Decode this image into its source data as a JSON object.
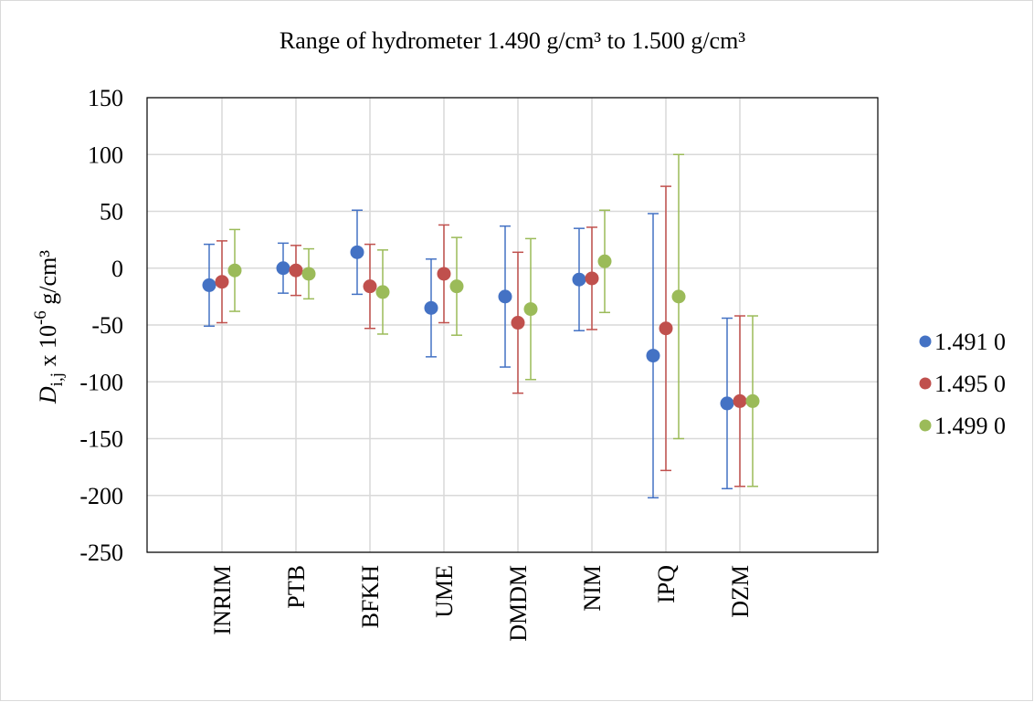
{
  "chart_data": {
    "type": "scatter",
    "title": "Range of hydrometer 1.490 g/cm³ to 1.500 g/cm³",
    "ylabel": {
      "italic": "D",
      "sub": "i,j",
      "rest": " x 10",
      "sup": "-6",
      "unit": " g/cm³"
    },
    "xlabel": "",
    "ylim": [
      -250,
      150
    ],
    "yticks": [
      150,
      100,
      50,
      0,
      -50,
      -100,
      -150,
      -200,
      -250
    ],
    "grid": true,
    "legend_position": "right",
    "categories": [
      "INRIM",
      "PTB",
      "BFKH",
      "UME",
      "DMDM",
      "NIM",
      "IPQ",
      "DZM"
    ],
    "series": [
      {
        "name": "1.491 0",
        "color": "#4472c4",
        "values": [
          -15,
          0,
          14,
          -35,
          -25,
          -10,
          -77,
          -119
        ],
        "errors": [
          36,
          22,
          37,
          43,
          62,
          45,
          125,
          75
        ]
      },
      {
        "name": "1.495 0",
        "color": "#c0504d",
        "values": [
          -12,
          -2,
          -16,
          -5,
          -48,
          -9,
          -53,
          -117
        ],
        "errors": [
          36,
          22,
          37,
          43,
          62,
          45,
          125,
          75
        ]
      },
      {
        "name": "1.499 0",
        "color": "#9bbb59",
        "values": [
          -2,
          -5,
          -21,
          -16,
          -36,
          6,
          -25,
          -117
        ],
        "errors": [
          36,
          22,
          37,
          43,
          62,
          45,
          125,
          75
        ]
      }
    ]
  }
}
